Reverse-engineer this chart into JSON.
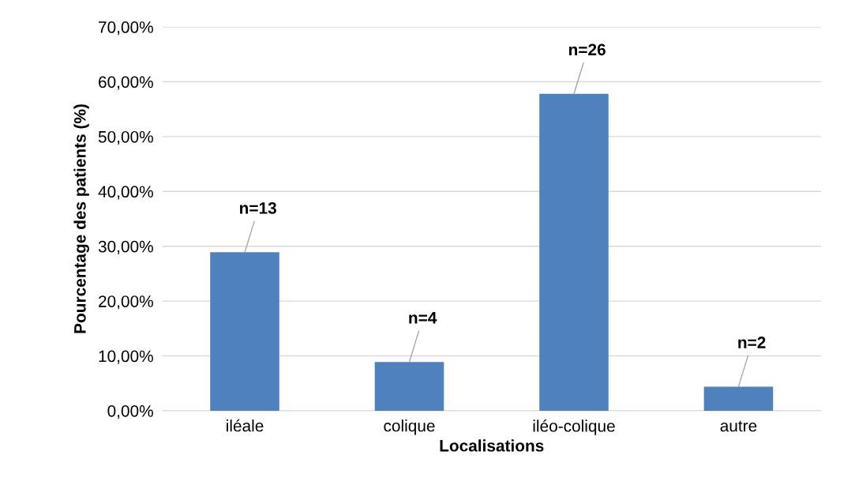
{
  "chart_data": {
    "type": "bar",
    "xlabel": "Localisations",
    "ylabel": "Pourcentage des patients (%)",
    "categories": [
      "iléale",
      "colique",
      "iléo-colique",
      "autre"
    ],
    "values": [
      28.9,
      8.9,
      57.8,
      4.4
    ],
    "color": "#4f81bd",
    "ylim": [
      0,
      70
    ],
    "yticks": [
      {
        "value": 0,
        "label": "0,00%"
      },
      {
        "value": 10,
        "label": "10,00%"
      },
      {
        "value": 20,
        "label": "20,00%"
      },
      {
        "value": 30,
        "label": "30,00%"
      },
      {
        "value": 40,
        "label": "40,00%"
      },
      {
        "value": 50,
        "label": "50,00%"
      },
      {
        "value": 60,
        "label": "60,00%"
      },
      {
        "value": 70,
        "label": "70,00%"
      }
    ],
    "grid": "y",
    "annotations": [
      {
        "text": "n=13",
        "x": "iléale",
        "y": 28.9
      },
      {
        "text": "n=4",
        "x": "colique",
        "y": 8.9
      },
      {
        "text": "n=26",
        "x": "iléo-colique",
        "y": 57.8
      },
      {
        "text": "n=2",
        "x": "autre",
        "y": 4.4
      }
    ]
  }
}
